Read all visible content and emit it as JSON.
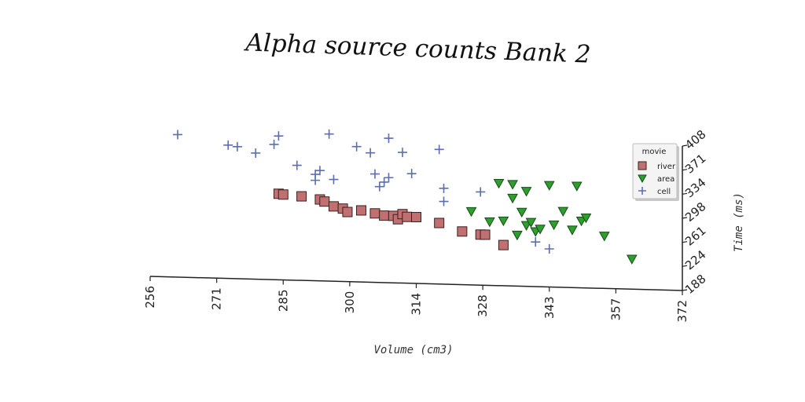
{
  "chart_data": {
    "type": "scatter",
    "title": "Alpha source counts Bank 2",
    "xlabel": "Volume (cm3)",
    "ylabel": "Time (ms)",
    "x_ticks": [
      "256",
      "271",
      "285",
      "300",
      "314",
      "328",
      "343",
      "357",
      "372"
    ],
    "y_ticks": [
      "188",
      "224",
      "261",
      "298",
      "334",
      "371",
      "408"
    ],
    "xlim": [
      256,
      372
    ],
    "ylim": [
      188,
      408
    ],
    "grid": false,
    "legend": {
      "title": "movie",
      "placement": "top-right"
    },
    "colors": {
      "river": "#c07070",
      "area": "#2e9e2e",
      "cell": "#5b6fb0"
    },
    "series": [
      {
        "name": "river",
        "marker": "square",
        "points": [
          [
            284,
            319
          ],
          [
            285,
            318
          ],
          [
            289,
            316
          ],
          [
            293,
            312
          ],
          [
            294,
            309
          ],
          [
            296,
            302
          ],
          [
            298,
            299
          ],
          [
            299,
            294
          ],
          [
            302,
            297
          ],
          [
            305,
            293
          ],
          [
            307,
            290
          ],
          [
            309,
            290
          ],
          [
            310,
            285
          ],
          [
            311,
            293
          ],
          [
            312,
            289
          ],
          [
            314,
            289
          ],
          [
            319,
            281
          ],
          [
            324,
            269
          ],
          [
            328,
            265
          ],
          [
            329,
            265
          ],
          [
            333,
            250
          ]
        ]
      },
      {
        "name": "area",
        "marker": "triangle-down",
        "points": [
          [
            326,
            300
          ],
          [
            330,
            285
          ],
          [
            332,
            344
          ],
          [
            333,
            287
          ],
          [
            335,
            322
          ],
          [
            335,
            343
          ],
          [
            336,
            266
          ],
          [
            337,
            301
          ],
          [
            338,
            281
          ],
          [
            338,
            333
          ],
          [
            339,
            286
          ],
          [
            340,
            272
          ],
          [
            341,
            276
          ],
          [
            343,
            343
          ],
          [
            344,
            283
          ],
          [
            346,
            304
          ],
          [
            348,
            276
          ],
          [
            349,
            343
          ],
          [
            350,
            290
          ],
          [
            351,
            295
          ],
          [
            355,
            268
          ],
          [
            361,
            234
          ]
        ]
      },
      {
        "name": "cell",
        "marker": "plus",
        "points": [
          [
            262,
            405
          ],
          [
            273,
            391
          ],
          [
            275,
            389
          ],
          [
            279,
            380
          ],
          [
            283,
            394
          ],
          [
            284,
            407
          ],
          [
            288,
            363
          ],
          [
            292,
            350
          ],
          [
            292,
            341
          ],
          [
            293,
            356
          ],
          [
            295,
            412
          ],
          [
            296,
            343
          ],
          [
            301,
            394
          ],
          [
            304,
            385
          ],
          [
            305,
            353
          ],
          [
            306,
            334
          ],
          [
            307,
            341
          ],
          [
            308,
            408
          ],
          [
            308,
            348
          ],
          [
            311,
            387
          ],
          [
            313,
            355
          ],
          [
            319,
            393
          ],
          [
            320,
            314
          ],
          [
            320,
            334
          ],
          [
            328,
            330
          ],
          [
            340,
            256
          ],
          [
            343,
            246
          ]
        ]
      }
    ]
  }
}
